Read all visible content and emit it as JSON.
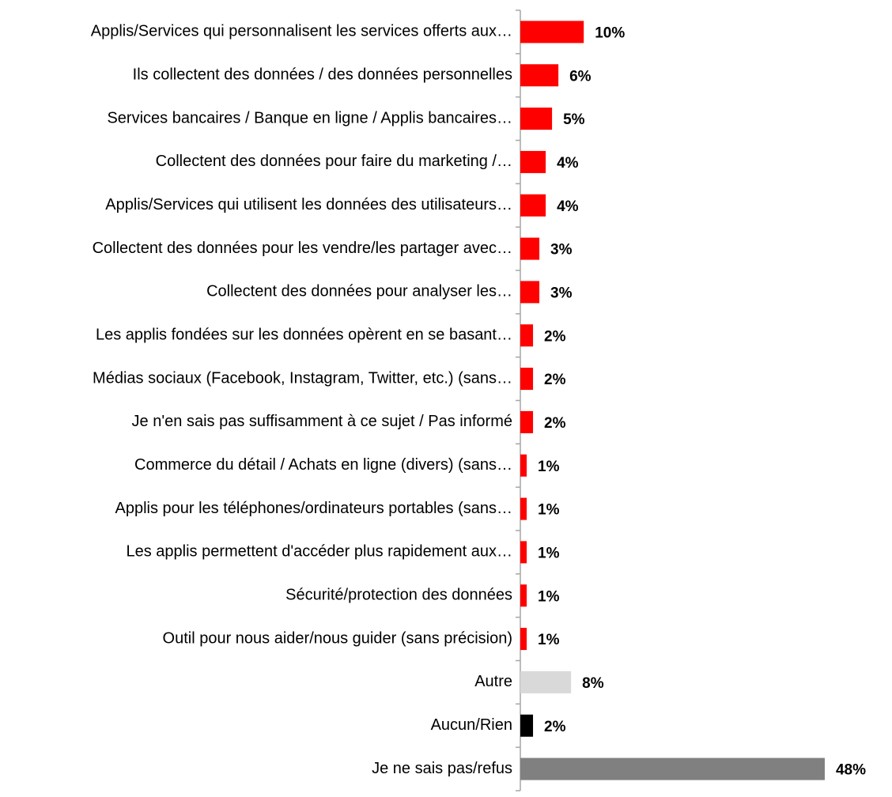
{
  "chart_data": {
    "type": "hbar",
    "categories": [
      "Applis/Services qui personnalisent les services offerts aux…",
      "Ils collectent des données / des données personnelles",
      "Services bancaires / Banque en ligne / Applis bancaires…",
      "Collectent des données pour faire du marketing /…",
      "Applis/Services qui utilisent les données des utilisateurs…",
      "Collectent des données pour les vendre/les partager avec…",
      "Collectent des données pour analyser les…",
      "Les applis fondées sur les données opèrent en se basant…",
      "Médias sociaux (Facebook, Instagram, Twitter, etc.) (sans…",
      "Je n'en sais pas suffisamment à ce sujet / Pas informé",
      "Commerce du détail / Achats en ligne (divers) (sans…",
      "Applis pour les téléphones/ordinateurs portables (sans…",
      "Les applis permettent d'accéder plus rapidement aux…",
      "Sécurité/protection des données",
      "Outil pour nous aider/nous guider (sans précision)",
      "Autre",
      "Aucun/Rien",
      "Je ne sais pas/refus"
    ],
    "values": [
      10,
      6,
      5,
      4,
      4,
      3,
      3,
      2,
      2,
      2,
      1,
      1,
      1,
      1,
      1,
      8,
      2,
      48
    ],
    "value_labels": [
      "10%",
      "6%",
      "5%",
      "4%",
      "4%",
      "3%",
      "3%",
      "2%",
      "2%",
      "2%",
      "1%",
      "1%",
      "1%",
      "1%",
      "1%",
      "8%",
      "2%",
      "48%"
    ],
    "colors": [
      "#ff0000",
      "#ff0000",
      "#ff0000",
      "#ff0000",
      "#ff0000",
      "#ff0000",
      "#ff0000",
      "#ff0000",
      "#ff0000",
      "#ff0000",
      "#ff0000",
      "#ff0000",
      "#ff0000",
      "#ff0000",
      "#ff0000",
      "#d9d9d9",
      "#000000",
      "#808080"
    ],
    "xlim": [
      0,
      50
    ]
  }
}
